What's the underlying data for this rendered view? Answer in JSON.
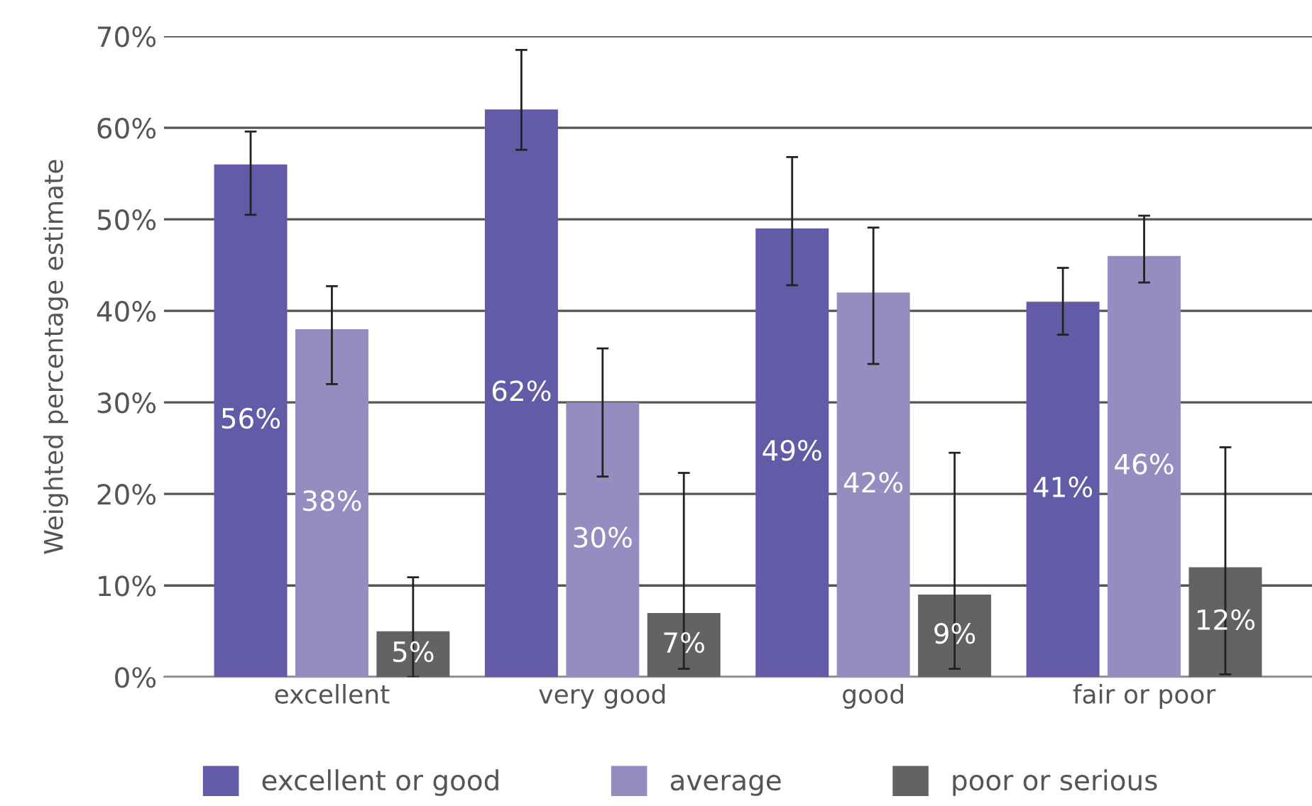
{
  "chart_data": {
    "type": "bar",
    "ylabel": "Weighted percentage estimate",
    "categories": [
      "excellent",
      "very good",
      "good",
      "fair or poor"
    ],
    "series": [
      {
        "name": "excellent or good",
        "color": "#635ba7",
        "values": [
          56,
          62,
          49,
          41
        ],
        "value_labels": [
          "56%",
          "62%",
          "49%",
          "41%"
        ],
        "errors": [
          [
            50.5,
            59.6
          ],
          [
            57.6,
            68.5
          ],
          [
            42.8,
            56.8
          ],
          [
            37.4,
            44.7
          ]
        ]
      },
      {
        "name": "average",
        "color": "#958dc0",
        "values": [
          38,
          30,
          42,
          46
        ],
        "value_labels": [
          "38%",
          "30%",
          "42%",
          "46%"
        ],
        "errors": [
          [
            32,
            42.7
          ],
          [
            21.9,
            35.9
          ],
          [
            34.2,
            49.1
          ],
          [
            43.1,
            50.4
          ]
        ]
      },
      {
        "name": "poor or serious",
        "color": "#636363",
        "values": [
          5,
          7,
          9,
          12
        ],
        "value_labels": [
          "5%",
          "7%",
          "9%",
          "12%"
        ],
        "errors": [
          [
            0,
            10.9
          ],
          [
            0.9,
            22.3
          ],
          [
            0.9,
            24.5
          ],
          [
            0.3,
            25.1
          ]
        ]
      }
    ],
    "ylim": [
      0,
      70
    ],
    "yticks": [
      {
        "value": 0,
        "label": "0%"
      },
      {
        "value": 10,
        "label": "10%"
      },
      {
        "value": 20,
        "label": "20%"
      },
      {
        "value": 30,
        "label": "30%"
      },
      {
        "value": 40,
        "label": "40%"
      },
      {
        "value": 50,
        "label": "50%"
      },
      {
        "value": 60,
        "label": "60%"
      },
      {
        "value": 70,
        "label": "70%"
      }
    ],
    "grid": "y",
    "legend": "bottom"
  }
}
